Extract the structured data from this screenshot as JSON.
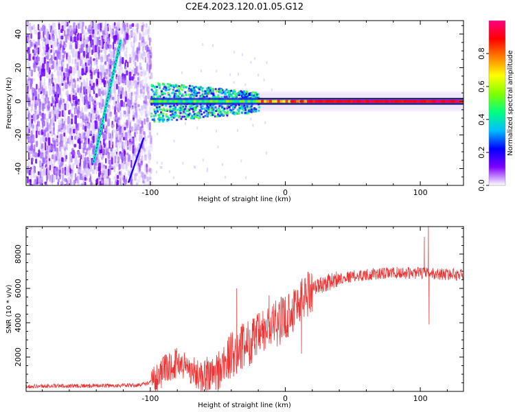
{
  "chart_data": [
    {
      "type": "heatmap",
      "title": "C2E4.2023.120.01.05.G12",
      "xlabel": "Height of straight line (km)",
      "ylabel": "Frequency (Hz)",
      "xlim": [
        -192,
        132
      ],
      "ylim": [
        -50,
        48
      ],
      "xticks": [
        -100,
        0,
        100
      ],
      "yticks": [
        -40,
        -20,
        0,
        20,
        40
      ],
      "colorbar": {
        "label": "Normalized spectral amplitude",
        "range": [
          0,
          1
        ],
        "ticks": [
          0.0,
          0.2,
          0.4,
          0.6,
          0.8
        ],
        "tick_labels": [
          "0.0",
          "0.2",
          "0.4",
          "0.6",
          "0.8"
        ],
        "colormap": [
          "#ffffff",
          "#8000ff",
          "#0000ff",
          "#00c0ff",
          "#00ff80",
          "#80ff00",
          "#ffff00",
          "#ff8000",
          "#ff0000",
          "#ff0080"
        ]
      },
      "features": [
        {
          "name": "noise-field",
          "x_range": [
            -192,
            -100
          ],
          "y_range": [
            -50,
            48
          ],
          "amplitude": 0.2
        },
        {
          "name": "slanted-trace",
          "points": [
            [
              -142,
              -36
            ],
            [
              -122,
              36
            ]
          ],
          "amplitude": 0.4
        },
        {
          "name": "slanted-trace-2",
          "points": [
            [
              -116,
              -48
            ],
            [
              -105,
              -22
            ]
          ],
          "amplitude": 0.2
        },
        {
          "name": "carrier-band",
          "x_range": [
            -100,
            132
          ],
          "center_hz": 0,
          "amplitude": 0.9
        }
      ]
    },
    {
      "type": "line",
      "xlabel": "Height of straight line (km)",
      "ylabel": "SNR (10 * v/v)",
      "xlim": [
        -192,
        132
      ],
      "ylim": [
        0,
        9600
      ],
      "xticks": [
        -100,
        0,
        100
      ],
      "yticks": [
        2000,
        4000,
        6000,
        8000
      ],
      "color": "#ee3333",
      "envelope": [
        {
          "x": -192,
          "y": 300
        },
        {
          "x": -110,
          "y": 350
        },
        {
          "x": -100,
          "y": 500
        },
        {
          "x": -90,
          "y": 1200
        },
        {
          "x": -80,
          "y": 1700
        },
        {
          "x": -72,
          "y": 1400
        },
        {
          "x": -60,
          "y": 700
        },
        {
          "x": -50,
          "y": 1100
        },
        {
          "x": -40,
          "y": 2100
        },
        {
          "x": -30,
          "y": 2700
        },
        {
          "x": -20,
          "y": 3200
        },
        {
          "x": -10,
          "y": 3800
        },
        {
          "x": 0,
          "y": 4300
        },
        {
          "x": 10,
          "y": 5200
        },
        {
          "x": 20,
          "y": 6000
        },
        {
          "x": 30,
          "y": 6300
        },
        {
          "x": 40,
          "y": 6600
        },
        {
          "x": 60,
          "y": 6800
        },
        {
          "x": 80,
          "y": 6900
        },
        {
          "x": 100,
          "y": 6900
        },
        {
          "x": 110,
          "y": 6850
        },
        {
          "x": 132,
          "y": 6800
        }
      ],
      "spikes": [
        {
          "x": 103,
          "y": 9000
        },
        {
          "x": 106,
          "y": 9600
        },
        {
          "x": 106.5,
          "y": 3900
        },
        {
          "x": -36,
          "y": 6000
        },
        {
          "x": -12,
          "y": 5600
        },
        {
          "x": 12,
          "y": 2200
        }
      ]
    }
  ]
}
